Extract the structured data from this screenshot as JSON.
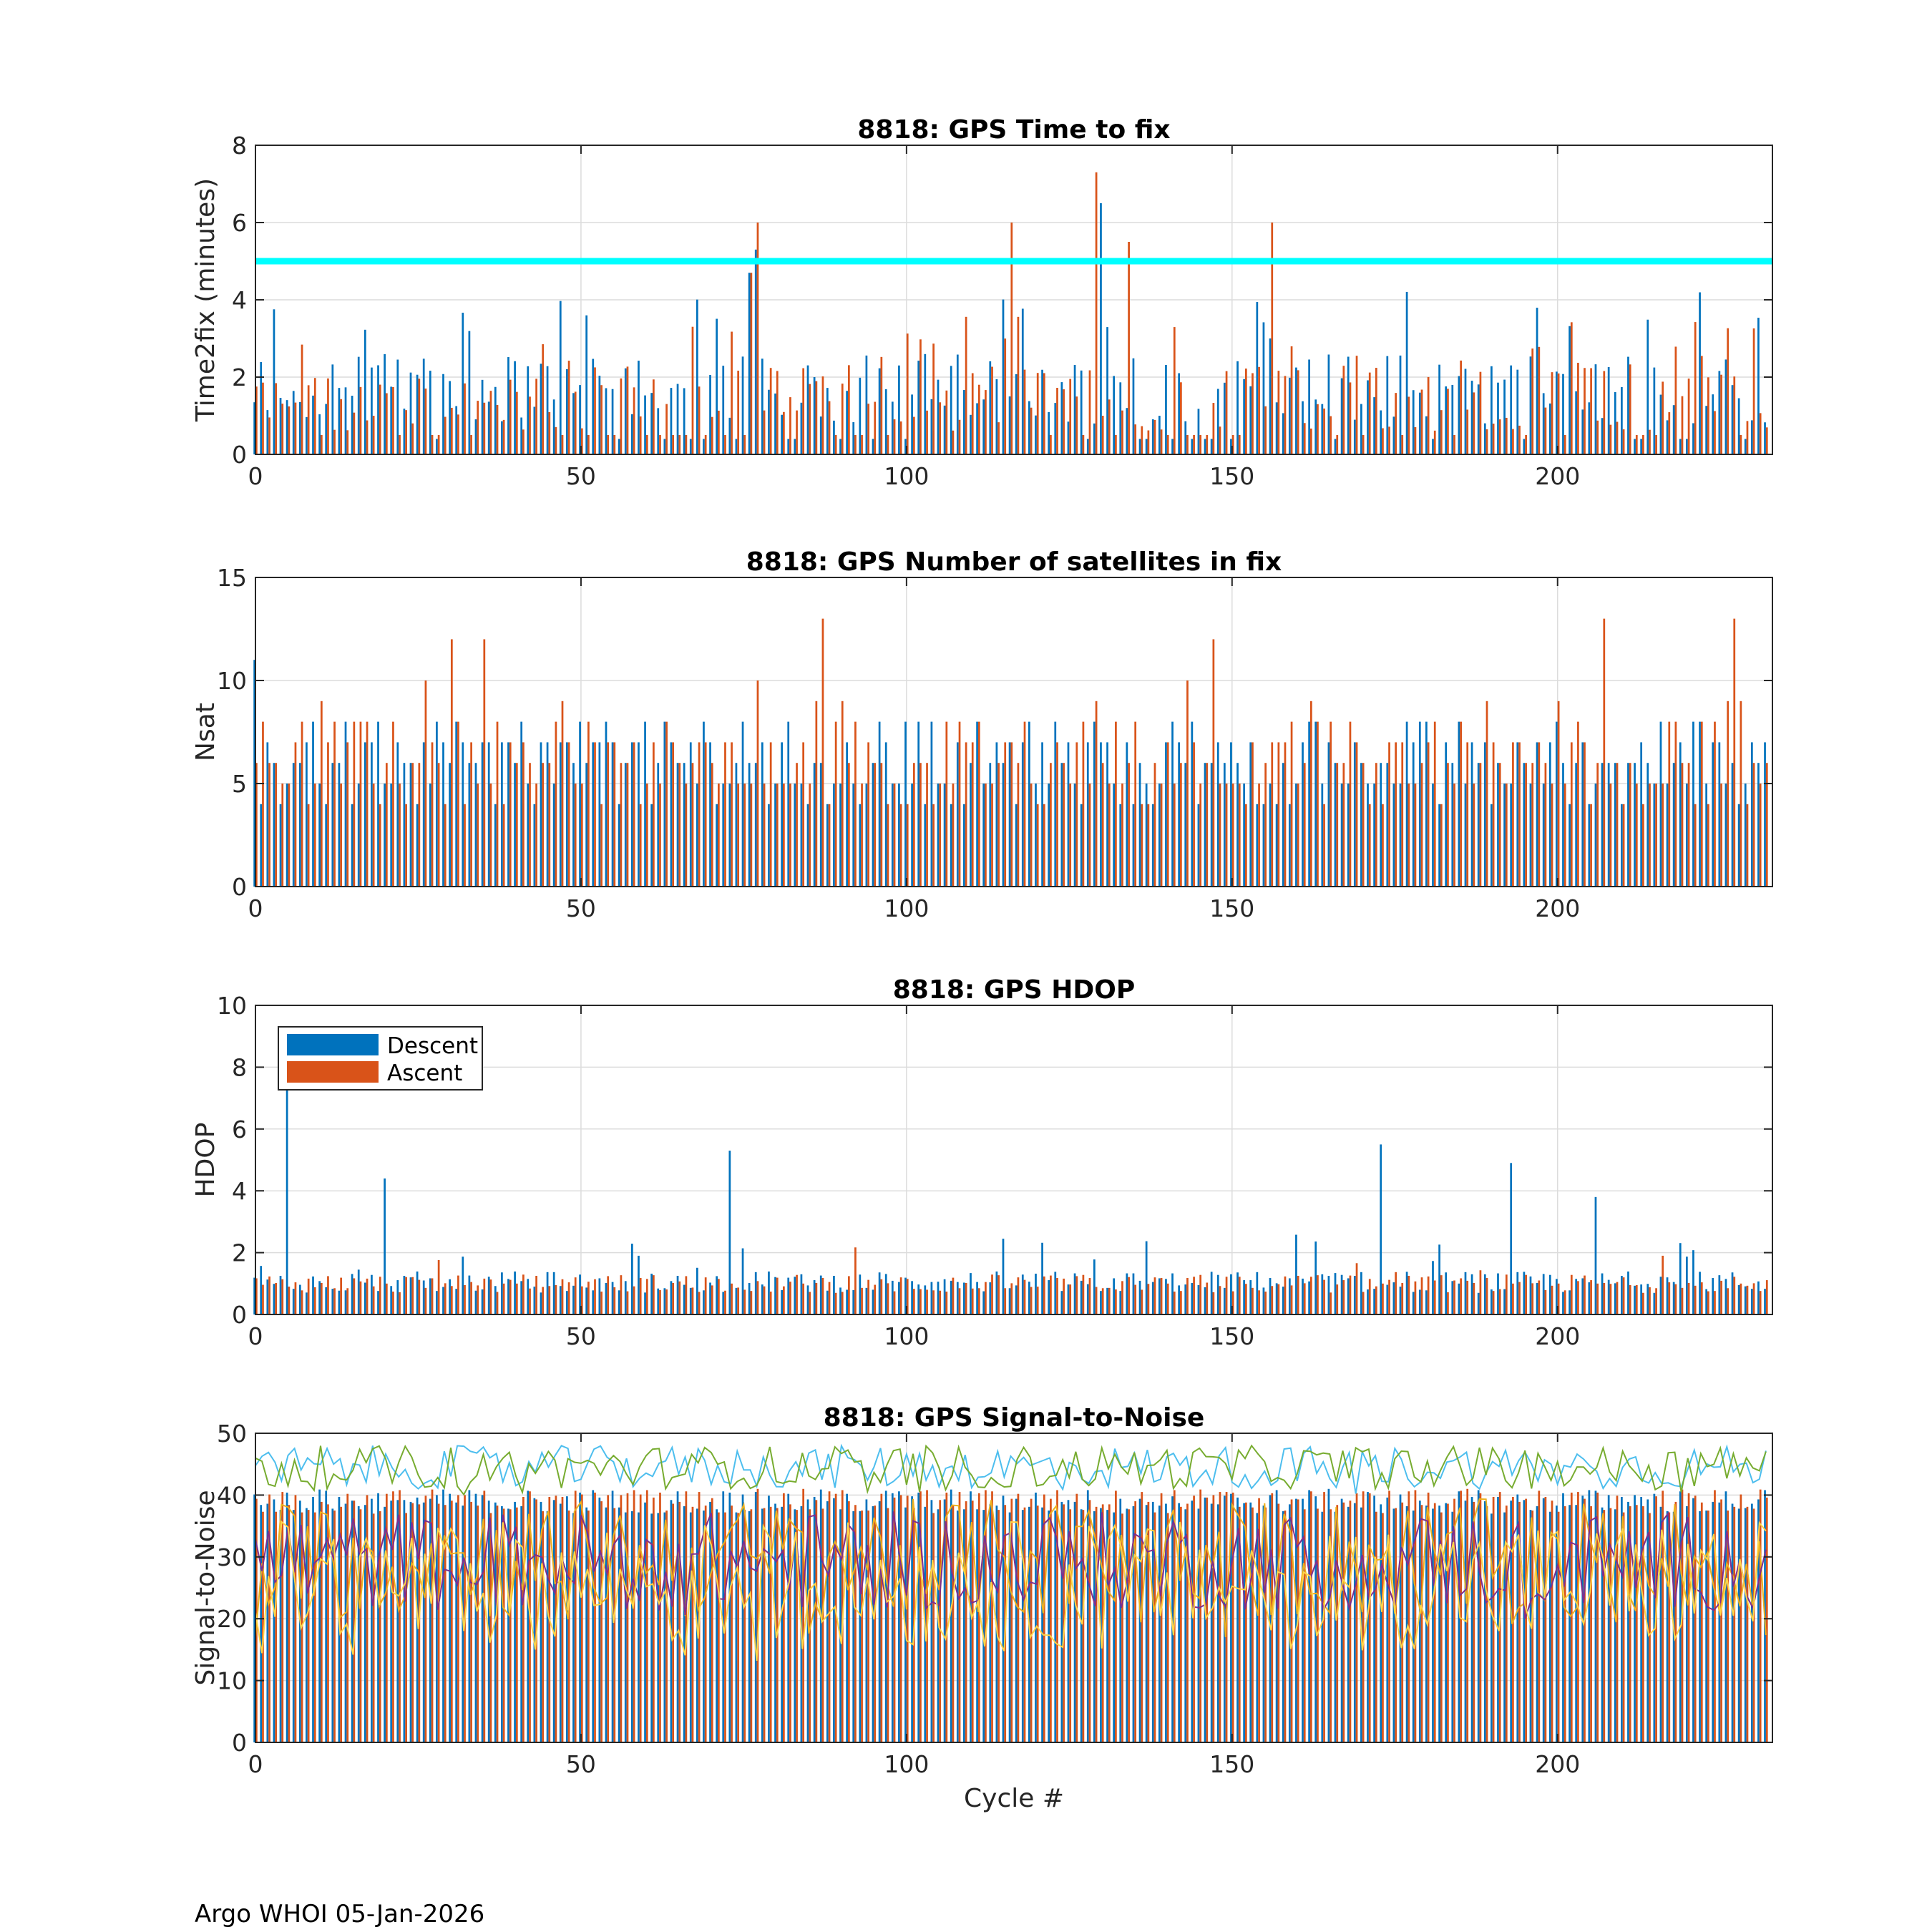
{
  "figure": {
    "footer": "Argo WHOI 05-Jan-2026",
    "xlabel": "Cycle #",
    "series_names": [
      "Descent",
      "Ascent"
    ],
    "colors": {
      "descent": "#0072BD",
      "ascent": "#D95319",
      "threshold": "#00FFFF",
      "snr_lines": [
        "#4DBEEE",
        "#77AC30",
        "#EDB120",
        "#7E2F8E",
        "#FFD54A"
      ]
    }
  },
  "chart_data": [
    {
      "type": "bar",
      "title": "8818: GPS Time to fix",
      "xlabel": "",
      "ylabel": "Time2fix (minutes)",
      "xlim": [
        0,
        233
      ],
      "ylim": [
        0,
        8
      ],
      "xticks": [
        0,
        50,
        100,
        150,
        200
      ],
      "yticks": [
        0,
        2,
        4,
        6,
        8
      ],
      "grid": true,
      "threshold_line": 5,
      "cycles": "0..232",
      "values_note": "baseline per-cycle values 0-4.7 min (pattern); notable peaks listed",
      "peaks": [
        {
          "cycle": 76,
          "descent": 4.7,
          "ascent": 4.7
        },
        {
          "cycle": 77,
          "descent": 5.3,
          "ascent": 6.0
        },
        {
          "cycle": 116,
          "descent": 1.5,
          "ascent": 6.0
        },
        {
          "cycle": 129,
          "descent": 0.8,
          "ascent": 7.3
        },
        {
          "cycle": 130,
          "descent": 6.5,
          "ascent": 1.0
        },
        {
          "cycle": 134,
          "descent": 1.2,
          "ascent": 5.5
        },
        {
          "cycle": 156,
          "descent": 3.0,
          "ascent": 6.0
        }
      ]
    },
    {
      "type": "bar",
      "title": "8818: GPS Number of satellites in fix",
      "xlabel": "",
      "ylabel": "Nsat",
      "xlim": [
        0,
        233
      ],
      "ylim": [
        0,
        15
      ],
      "xticks": [
        0,
        50,
        100,
        150,
        200
      ],
      "yticks": [
        0,
        5,
        10,
        15
      ],
      "grid": true,
      "cycles": "0..232",
      "values_note": "typical descent 4-8, ascent 4-13",
      "peaks": [
        {
          "cycle": 0,
          "descent": 11,
          "ascent": 6
        },
        {
          "cycle": 30,
          "descent": 6,
          "ascent": 12
        },
        {
          "cycle": 35,
          "descent": 7,
          "ascent": 12
        },
        {
          "cycle": 87,
          "descent": 6,
          "ascent": 13
        },
        {
          "cycle": 147,
          "descent": 6,
          "ascent": 12
        },
        {
          "cycle": 207,
          "descent": 6,
          "ascent": 13
        },
        {
          "cycle": 227,
          "descent": 6,
          "ascent": 13
        }
      ]
    },
    {
      "type": "bar",
      "title": "8818: GPS HDOP",
      "xlabel": "",
      "ylabel": "HDOP",
      "xlim": [
        0,
        233
      ],
      "ylim": [
        0,
        10
      ],
      "xticks": [
        0,
        50,
        100,
        150,
        200
      ],
      "yticks": [
        0,
        2,
        4,
        6,
        8,
        10
      ],
      "grid": true,
      "legend": {
        "entries": [
          "Descent",
          "Ascent"
        ],
        "location": "top-left"
      },
      "cycles": "0..232",
      "values_note": "typical 0.7-1.4",
      "peaks": [
        {
          "cycle": 5,
          "descent": 7.6,
          "ascent": 0.9
        },
        {
          "cycle": 20,
          "descent": 4.4,
          "ascent": 1.0
        },
        {
          "cycle": 73,
          "descent": 5.3,
          "ascent": 1.0
        },
        {
          "cycle": 173,
          "descent": 5.5,
          "ascent": 1.0
        },
        {
          "cycle": 193,
          "descent": 4.9,
          "ascent": 1.0
        },
        {
          "cycle": 206,
          "descent": 3.8,
          "ascent": 1.0
        }
      ]
    },
    {
      "type": "bar+line",
      "title": "8818: GPS Signal-to-Noise",
      "xlabel": "Cycle #",
      "ylabel": "Signal-to-Noise",
      "xlim": [
        0,
        233
      ],
      "ylim": [
        0,
        50
      ],
      "xticks": [
        0,
        50,
        100,
        150,
        200
      ],
      "yticks": [
        0,
        10,
        20,
        30,
        40,
        50
      ],
      "grid": true,
      "cycles": "0..232",
      "values_note": "bars ~37-41 per cycle; lines fluctuate",
      "line_ranges": [
        {
          "series": "snr-1",
          "min": 40,
          "max": 50
        },
        {
          "series": "snr-2",
          "min": 40,
          "max": 50
        },
        {
          "series": "snr-3",
          "min": 17,
          "max": 45
        },
        {
          "series": "snr-4",
          "min": 19,
          "max": 42
        },
        {
          "series": "snr-5",
          "min": 12,
          "max": 42
        }
      ]
    }
  ]
}
